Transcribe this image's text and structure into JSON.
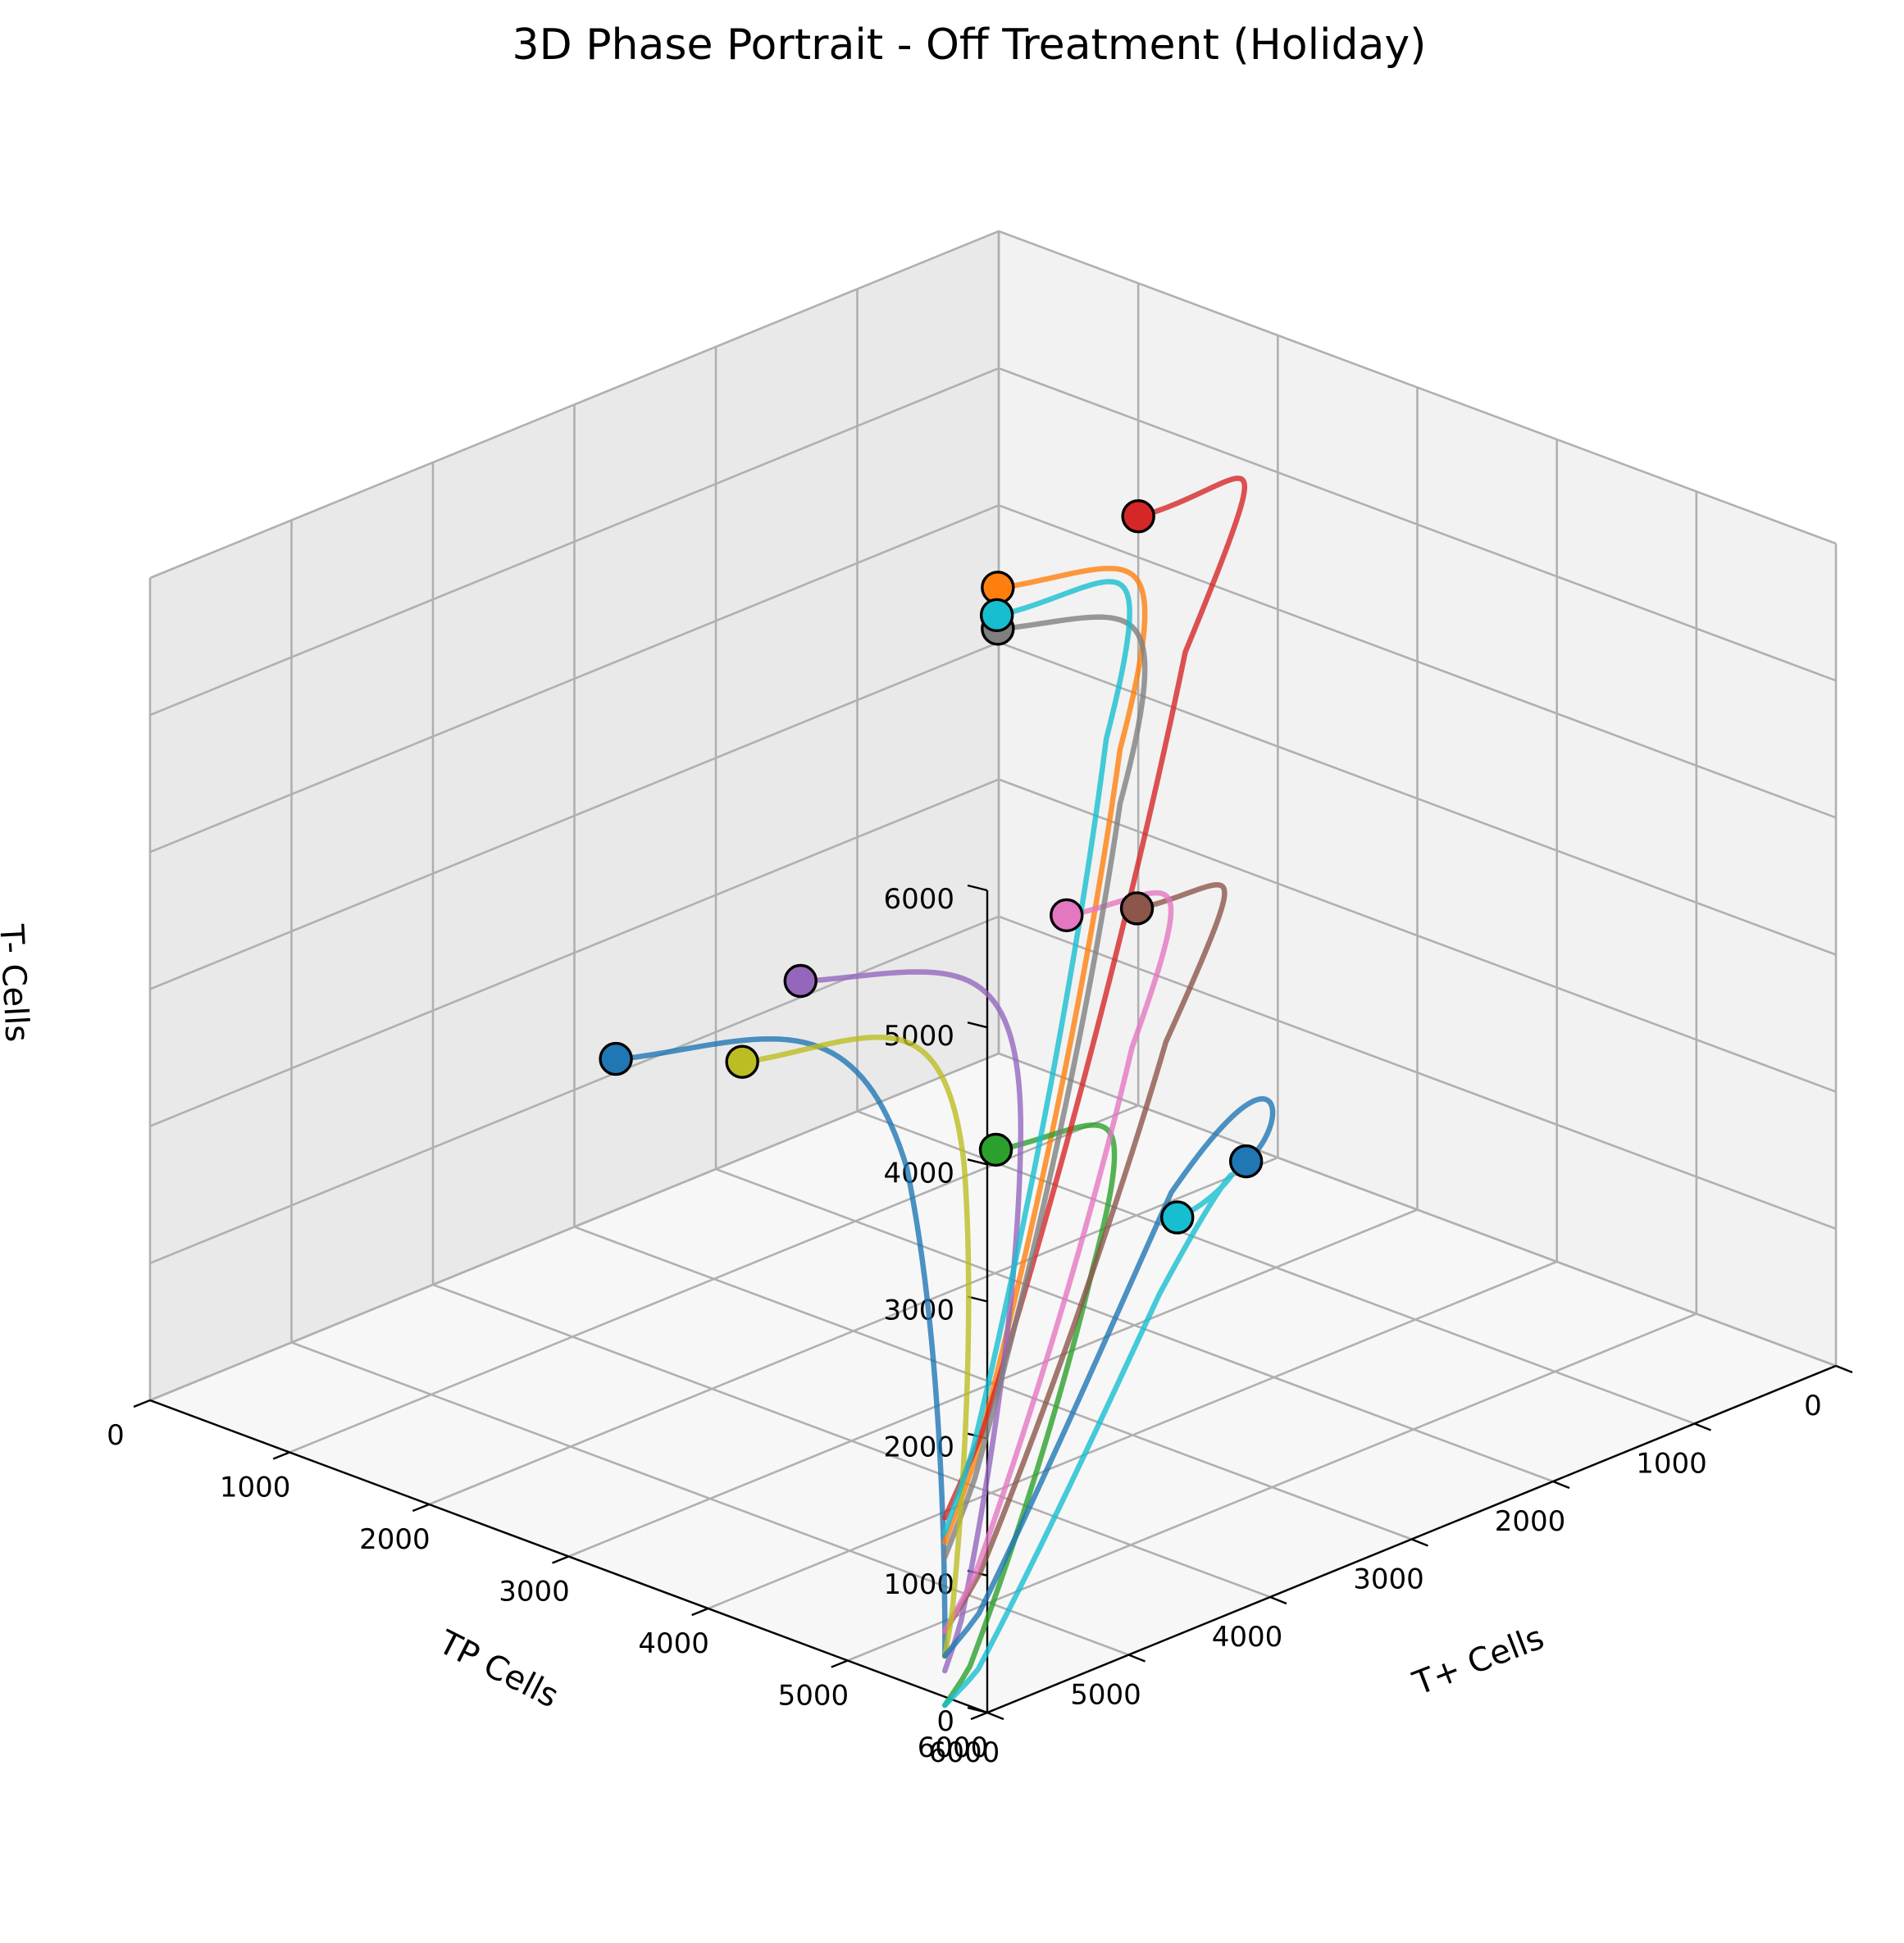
{
  "chart_data": {
    "type": "line",
    "title": "3D Phase Portrait - Off Treatment (Holiday)",
    "xlabel": "T+ Cells",
    "ylabel": "TP Cells",
    "zlabel": "T- Cells",
    "xlim": [
      0,
      6000
    ],
    "ylim": [
      0,
      6000
    ],
    "zlim": [
      0,
      6000
    ],
    "x_ticks": [
      "0",
      "1000",
      "2000",
      "3000",
      "4000",
      "5000",
      "6000"
    ],
    "y_ticks": [
      "0",
      "1000",
      "2000",
      "3000",
      "4000",
      "5000",
      "6000"
    ],
    "z_ticks": [
      "0",
      "1000",
      "2000",
      "3000",
      "4000",
      "5000",
      "6000"
    ],
    "grid": true,
    "legend": "none",
    "series": [
      {
        "color": "#1f77b4",
        "start": [
          500,
          3200,
          1500
        ]
      },
      {
        "color": "#ff7f0e",
        "start": [
          500,
          500,
          3800
        ]
      },
      {
        "color": "#2ca02c",
        "start": [
          1500,
          1500,
          500
        ]
      },
      {
        "color": "#d62728",
        "start": [
          1000,
          0,
          4300
        ]
      },
      {
        "color": "#9467bd",
        "start": [
          100,
          1500,
          1200
        ]
      },
      {
        "color": "#8c564b",
        "start": [
          1700,
          700,
          2000
        ]
      },
      {
        "color": "#e377c2",
        "start": [
          1500,
          1000,
          2000
        ]
      },
      {
        "color": "#7f7f7f",
        "start": [
          500,
          500,
          3500
        ]
      },
      {
        "color": "#bcbd22",
        "start": [
          1000,
          2800,
          1500
        ]
      },
      {
        "color": "#17becf",
        "start": [
          1000,
          1000,
          4000
        ]
      },
      {
        "color": "#1f77b4",
        "start": [
          3800,
          2000,
          1500
        ]
      },
      {
        "color": "#17becf",
        "start": [
          2800,
          1500,
          500
        ]
      }
    ]
  }
}
